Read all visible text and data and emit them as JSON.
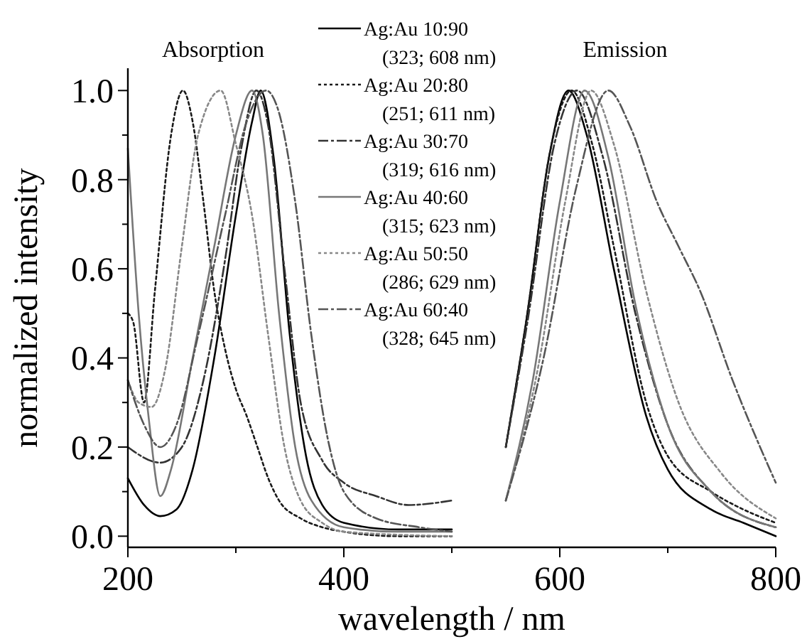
{
  "chart_data": {
    "type": "line",
    "xlabel": "wavelength / nm",
    "ylabel": "normalized intensity",
    "annotations": [
      "Absorption",
      "Emission"
    ],
    "xlim": [
      200,
      800
    ],
    "ylim": [
      -0.025,
      1.05
    ],
    "xticks": [
      200,
      {
        "value": 300,
        "label": null
      },
      400,
      {
        "value": 500,
        "label": null
      },
      600,
      {
        "value": 700,
        "label": null
      },
      800
    ],
    "yticks": [
      {
        "value": 0,
        "label": "0.0"
      },
      {
        "value": 0.1,
        "label": null
      },
      {
        "value": 0.2,
        "label": "0.2"
      },
      {
        "value": 0.3,
        "label": null
      },
      {
        "value": 0.4,
        "label": "0.4"
      },
      {
        "value": 0.5,
        "label": null
      },
      {
        "value": 0.6,
        "label": "0.6"
      },
      {
        "value": 0.7,
        "label": null
      },
      {
        "value": 0.8,
        "label": "0.8"
      },
      {
        "value": 0.9,
        "label": null
      },
      {
        "value": 1,
        "label": "1.0"
      }
    ],
    "grid": false,
    "legend": "top",
    "series": [
      {
        "name": "Ag:Au 10:90\n(323; 608 nm)",
        "color": "#000000",
        "line_style": "solid",
        "x": [
          200,
          215,
          230,
          245,
          260,
          280,
          300,
          315,
          323,
          335,
          350,
          365,
          380,
          400,
          450,
          500,
          525,
          550,
          570,
          590,
          608,
          625,
          650,
          680,
          700,
          740,
          770,
          800
        ],
        "values": [
          0.13,
          0.07,
          0.045,
          0.06,
          0.15,
          0.4,
          0.72,
          0.93,
          1.0,
          0.85,
          0.45,
          0.18,
          0.07,
          0.03,
          0.015,
          0.015,
          null,
          0.2,
          0.5,
          0.85,
          1.0,
          0.9,
          0.6,
          0.27,
          0.15,
          0.06,
          0.03,
          0.0
        ]
      },
      {
        "name": "Ag:Au 20:80\n(251; 611 nm)",
        "color": "#1a1a1a",
        "line_style": "dotted",
        "x": [
          200,
          205,
          215,
          225,
          240,
          251,
          260,
          270,
          280,
          290,
          300,
          310,
          320,
          330,
          340,
          360,
          380,
          400,
          450,
          500,
          525,
          550,
          570,
          590,
          611,
          630,
          650,
          680,
          700,
          740,
          770,
          800
        ],
        "values": [
          0.5,
          0.48,
          0.3,
          0.55,
          0.9,
          1.0,
          0.93,
          0.75,
          0.55,
          0.42,
          0.33,
          0.27,
          0.2,
          0.13,
          0.08,
          0.04,
          0.02,
          0.01,
          0.0,
          0.0,
          null,
          0.2,
          0.5,
          0.85,
          1.0,
          0.88,
          0.65,
          0.3,
          0.18,
          0.1,
          0.06,
          0.03
        ]
      },
      {
        "name": "Ag:Au 30:70\n(319; 616 nm)",
        "color": "#333333",
        "line_style": "dashed",
        "x": [
          200,
          230,
          250,
          270,
          290,
          305,
          319,
          330,
          345,
          360,
          380,
          400,
          430,
          460,
          500,
          525,
          550,
          570,
          595,
          616,
          640,
          670,
          700,
          740,
          800
        ],
        "values": [
          0.2,
          0.165,
          0.2,
          0.35,
          0.62,
          0.87,
          1.0,
          0.92,
          0.6,
          0.3,
          0.17,
          0.12,
          0.09,
          0.07,
          0.08,
          null,
          0.2,
          0.48,
          0.88,
          1.0,
          0.85,
          0.5,
          0.25,
          0.1,
          0.02
        ]
      },
      {
        "name": "Ag:Au 40:60\n(315; 623 nm)",
        "color": "#777777",
        "line_style": "solid",
        "x": [
          200,
          210,
          220,
          230,
          240,
          260,
          280,
          300,
          315,
          325,
          340,
          355,
          370,
          400,
          450,
          500,
          525,
          550,
          575,
          600,
          623,
          645,
          670,
          700,
          740,
          800
        ],
        "values": [
          0.87,
          0.5,
          0.25,
          0.09,
          0.15,
          0.4,
          0.65,
          0.9,
          1.0,
          0.9,
          0.5,
          0.2,
          0.08,
          0.02,
          0.01,
          0.01,
          null,
          0.08,
          0.35,
          0.75,
          1.0,
          0.85,
          0.52,
          0.25,
          0.1,
          0.02
        ]
      },
      {
        "name": "Ag:Au 50:50\n(286; 629 nm)",
        "color": "#888888",
        "line_style": "dotted",
        "x": [
          200,
          210,
          222,
          235,
          250,
          265,
          286,
          300,
          315,
          330,
          345,
          360,
          380,
          400,
          500,
          525,
          550,
          580,
          605,
          629,
          650,
          680,
          710,
          750,
          800
        ],
        "values": [
          0.35,
          0.3,
          0.29,
          0.38,
          0.65,
          0.9,
          1.0,
          0.88,
          0.72,
          0.45,
          0.2,
          0.08,
          0.03,
          0.01,
          0.0,
          null,
          0.08,
          0.38,
          0.75,
          1.0,
          0.88,
          0.55,
          0.3,
          0.14,
          0.04
        ]
      },
      {
        "name": "Ag:Au 60:40\n(328; 645 nm)",
        "color": "#555555",
        "line_style": "dashed",
        "x": [
          200,
          215,
          230,
          245,
          265,
          290,
          310,
          328,
          340,
          355,
          370,
          385,
          400,
          430,
          470,
          500,
          525,
          550,
          585,
          615,
          645,
          665,
          690,
          710,
          730,
          760,
          800
        ],
        "values": [
          0.35,
          0.25,
          0.2,
          0.25,
          0.45,
          0.72,
          0.93,
          1.0,
          0.95,
          0.75,
          0.45,
          0.22,
          0.1,
          0.04,
          0.02,
          0.01,
          null,
          0.08,
          0.4,
          0.78,
          1.0,
          0.92,
          0.75,
          0.65,
          0.55,
          0.35,
          0.12
        ]
      }
    ]
  }
}
